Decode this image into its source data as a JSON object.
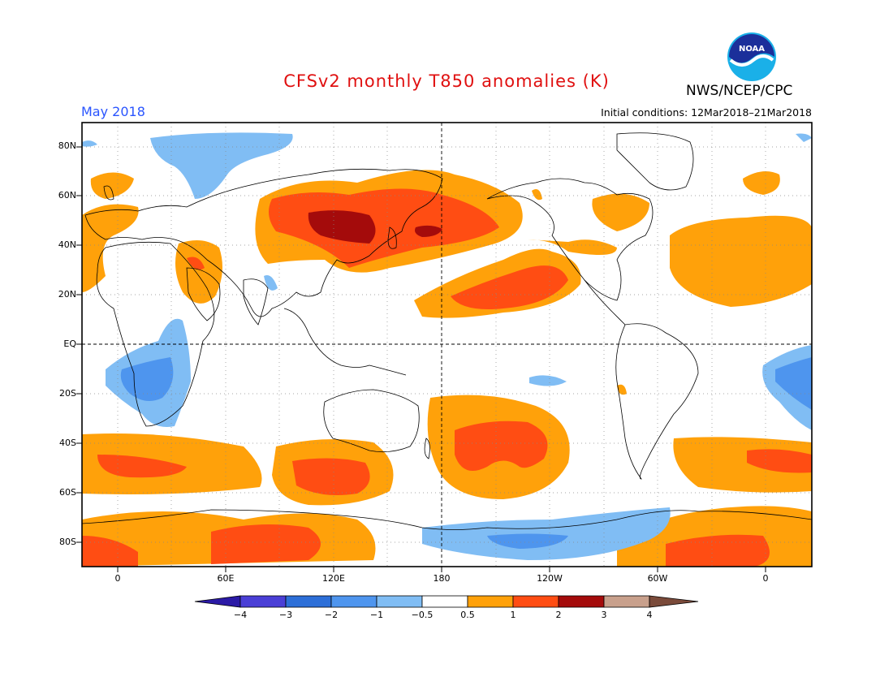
{
  "header": {
    "title": "CFSv2 monthly T850 anomalies (K)",
    "month": "May 2018",
    "initial_conditions": "Initial conditions: 12Mar2018–21Mar2018",
    "agency": "NWS/NCEP/CPC",
    "logo_text": "NOAA"
  },
  "axes": {
    "lat_labels": [
      "80N",
      "60N",
      "40N",
      "20N",
      "EQ",
      "20S",
      "40S",
      "60S",
      "80S"
    ],
    "lon_labels": [
      "0",
      "60E",
      "120E",
      "180",
      "120W",
      "60W",
      "0"
    ]
  },
  "colorbar": {
    "labels": [
      "−4",
      "−3",
      "−2",
      "−1",
      "−0.5",
      "0.5",
      "1",
      "2",
      "3",
      "4"
    ],
    "colors": [
      "#2b1aa6",
      "#4a3fd6",
      "#2d6fd8",
      "#4e95ee",
      "#80bdf4",
      "#ffffff",
      "#ffa10a",
      "#ff4d13",
      "#a40b0b",
      "#c8a08c",
      "#7a4a3a"
    ]
  },
  "colors": {
    "title": "#e01010",
    "month": "#2a55ff",
    "pos1": "#ffa10a",
    "pos2": "#ff4d13",
    "pos3": "#a40b0b",
    "neg1": "#80bdf4",
    "neg2": "#4e95ee",
    "neg3": "#2d6fd8"
  }
}
